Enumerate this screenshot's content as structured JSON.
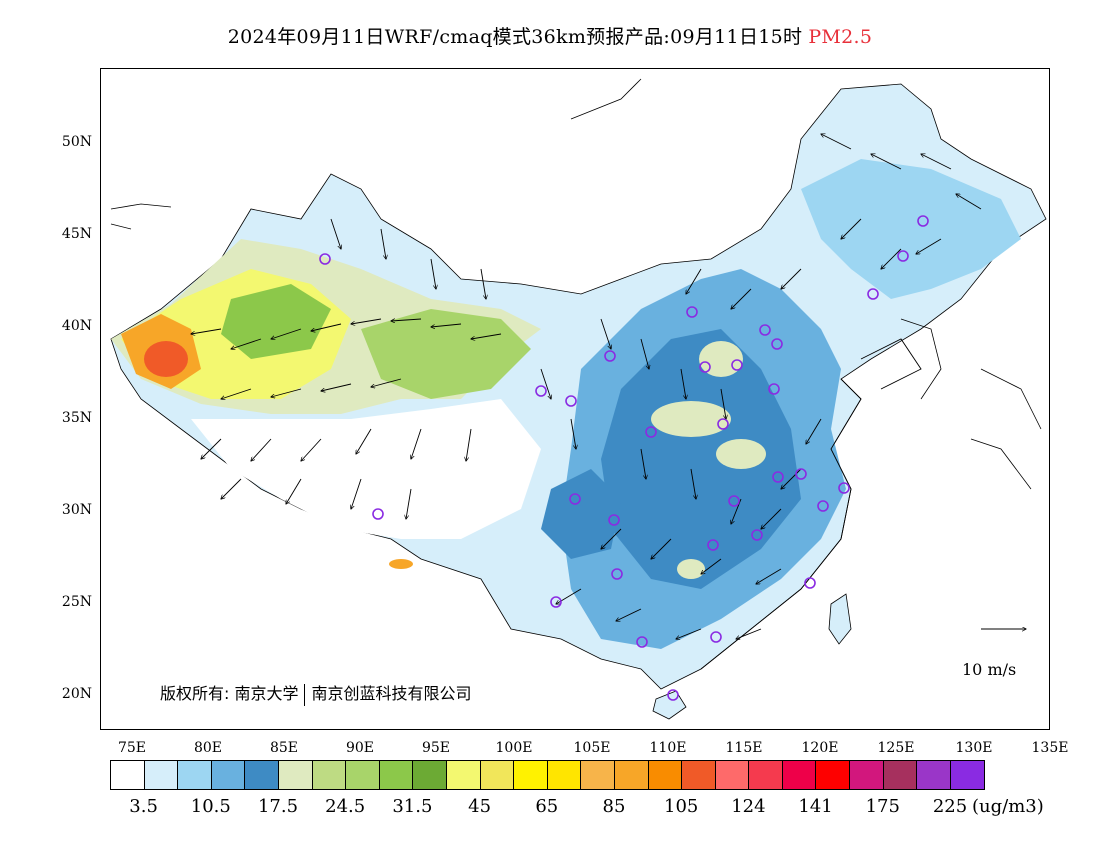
{
  "title": {
    "main": "2024年09月11日WRF/cmaq模式36km预报产品:09月11日15时",
    "pollutant": "PM2.5",
    "pollutant_color": "#e8303a"
  },
  "lat_labels": [
    "50N",
    "45N",
    "40N",
    "35N",
    "30N",
    "25N",
    "20N"
  ],
  "lon_labels": [
    "75E",
    "80E",
    "85E",
    "90E",
    "95E",
    "100E",
    "105E",
    "110E",
    "115E",
    "120E",
    "125E",
    "130E",
    "135E"
  ],
  "copyright": {
    "left": "版权所有: 南京大学",
    "right": "南京创蓝科技有限公司"
  },
  "wind_reference": "10 m/s",
  "legend": {
    "colors": [
      "#ffffff",
      "#d6eefa",
      "#9dd6f2",
      "#69b1df",
      "#3e8bc4",
      "#dfeac0",
      "#bedb83",
      "#a8d46a",
      "#8cc84a",
      "#6caa34",
      "#f3f870",
      "#f1e65a",
      "#fff200",
      "#ffe500",
      "#f7b44a",
      "#f7a628",
      "#f98c00",
      "#f05a28",
      "#fe6a6a",
      "#f53a4e",
      "#ee0049",
      "#fe0000",
      "#d2177d",
      "#a6305e",
      "#9a36c8",
      "#8a2be2"
    ],
    "labels": [
      "3.5",
      "10.5",
      "17.5",
      "24.5",
      "31.5",
      "45",
      "65",
      "85",
      "105",
      "124",
      "141",
      "175",
      "225"
    ],
    "unit": "(ug/m3)"
  }
}
